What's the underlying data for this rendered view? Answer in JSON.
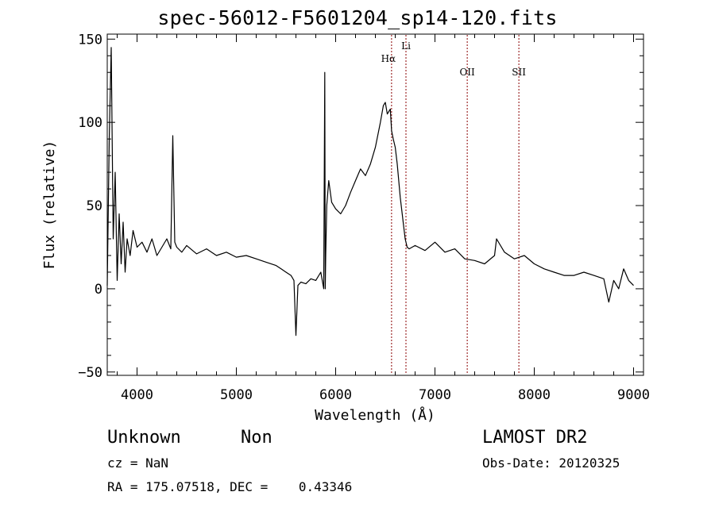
{
  "chart_data": {
    "type": "line",
    "title": "spec-56012-F5601204_sp14-120.fits",
    "xlabel": "Wavelength (Å)",
    "ylabel": "Flux (relative)",
    "xlim": [
      3700,
      9100
    ],
    "ylim": [
      -52,
      153
    ],
    "x_ticks": [
      4000,
      5000,
      6000,
      7000,
      8000,
      9000
    ],
    "y_ticks": [
      -50,
      0,
      50,
      100,
      150
    ],
    "grid": false,
    "legend": "none",
    "line_color": "#000000",
    "marker_color": "#8b0000",
    "lines": [
      {
        "label": "Hα",
        "x": 6563
      },
      {
        "label": "Li",
        "x": 6708
      },
      {
        "label": "OII",
        "x": 7325
      },
      {
        "label": "SII",
        "x": 7845
      }
    ],
    "series": [
      {
        "x": [
          3700,
          3720,
          3740,
          3760,
          3780,
          3800,
          3820,
          3840,
          3860,
          3880,
          3900,
          3930,
          3960,
          4000,
          4050,
          4100,
          4150,
          4200,
          4250,
          4300,
          4340,
          4360,
          4380,
          4400,
          4450,
          4500,
          4600,
          4700,
          4800,
          4900,
          5000,
          5100,
          5200,
          5300,
          5400,
          5450,
          5500,
          5550,
          5580,
          5600,
          5620,
          5650,
          5700,
          5750,
          5800,
          5850,
          5880,
          5890,
          5895,
          5900,
          5910,
          5930,
          5960,
          6000,
          6050,
          6100,
          6150,
          6200,
          6250,
          6300,
          6350,
          6400,
          6450,
          6480,
          6500,
          6520,
          6550,
          6563,
          6580,
          6600,
          6620,
          6650,
          6680,
          6700,
          6720,
          6740,
          6800,
          6900,
          7000,
          7100,
          7200,
          7300,
          7400,
          7500,
          7600,
          7620,
          7700,
          7800,
          7900,
          8000,
          8100,
          8200,
          8300,
          8400,
          8500,
          8600,
          8700,
          8750,
          8800,
          8850,
          8900,
          8950,
          9000
        ],
        "y": [
          2,
          90,
          145,
          30,
          70,
          5,
          45,
          15,
          40,
          10,
          30,
          20,
          35,
          25,
          28,
          22,
          30,
          20,
          25,
          30,
          24,
          92,
          28,
          25,
          22,
          26,
          21,
          24,
          20,
          22,
          19,
          20,
          18,
          16,
          14,
          12,
          10,
          8,
          5,
          -28,
          2,
          4,
          3,
          6,
          5,
          10,
          0,
          130,
          0,
          20,
          50,
          65,
          52,
          48,
          45,
          50,
          58,
          65,
          72,
          68,
          75,
          85,
          100,
          110,
          112,
          105,
          108,
          95,
          90,
          85,
          75,
          55,
          40,
          30,
          25,
          24,
          26,
          23,
          28,
          22,
          24,
          18,
          17,
          15,
          20,
          30,
          22,
          18,
          20,
          15,
          12,
          10,
          8,
          8,
          10,
          8,
          6,
          -8,
          5,
          0,
          12,
          5,
          2
        ]
      }
    ]
  },
  "info": {
    "object_class": "Unknown",
    "object_subclass": "Non",
    "redshift": "cz = NaN",
    "coords": "RA = 175.07518, DEC =    0.43346",
    "survey": "LAMOST DR2",
    "obs_date": "Obs-Date: 20120325"
  }
}
